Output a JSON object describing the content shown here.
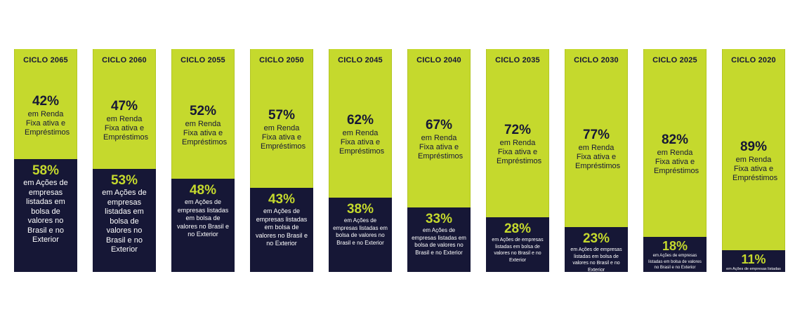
{
  "chart_data": {
    "type": "bar",
    "stacked": true,
    "categories": [
      "CICLO 2065",
      "CICLO 2060",
      "CICLO 2055",
      "CICLO 2050",
      "CICLO 2045",
      "CICLO 2040",
      "CICLO 2035",
      "CICLO 2030",
      "CICLO 2025",
      "CICLO 2020"
    ],
    "series": [
      {
        "values": [
          42,
          47,
          52,
          57,
          62,
          67,
          72,
          77,
          82,
          89
        ],
        "labels": [
          "42%",
          "47%",
          "52%",
          "57%",
          "62%",
          "67%",
          "72%",
          "77%",
          "82%",
          "89%"
        ],
        "description": "em Renda Fixa ativa e Empréstimos",
        "color": "#c5d92d"
      },
      {
        "values": [
          58,
          53,
          48,
          43,
          38,
          33,
          28,
          23,
          18,
          11
        ],
        "labels": [
          "58%",
          "53%",
          "48%",
          "43%",
          "38%",
          "33%",
          "28%",
          "23%",
          "18%",
          "11%"
        ],
        "description": "em Ações de empresas listadas em bolsa de valores no Brasil e no Exterior",
        "color": "#161736"
      }
    ],
    "ylim": [
      0,
      100
    ],
    "grid": false,
    "legend": "none"
  }
}
